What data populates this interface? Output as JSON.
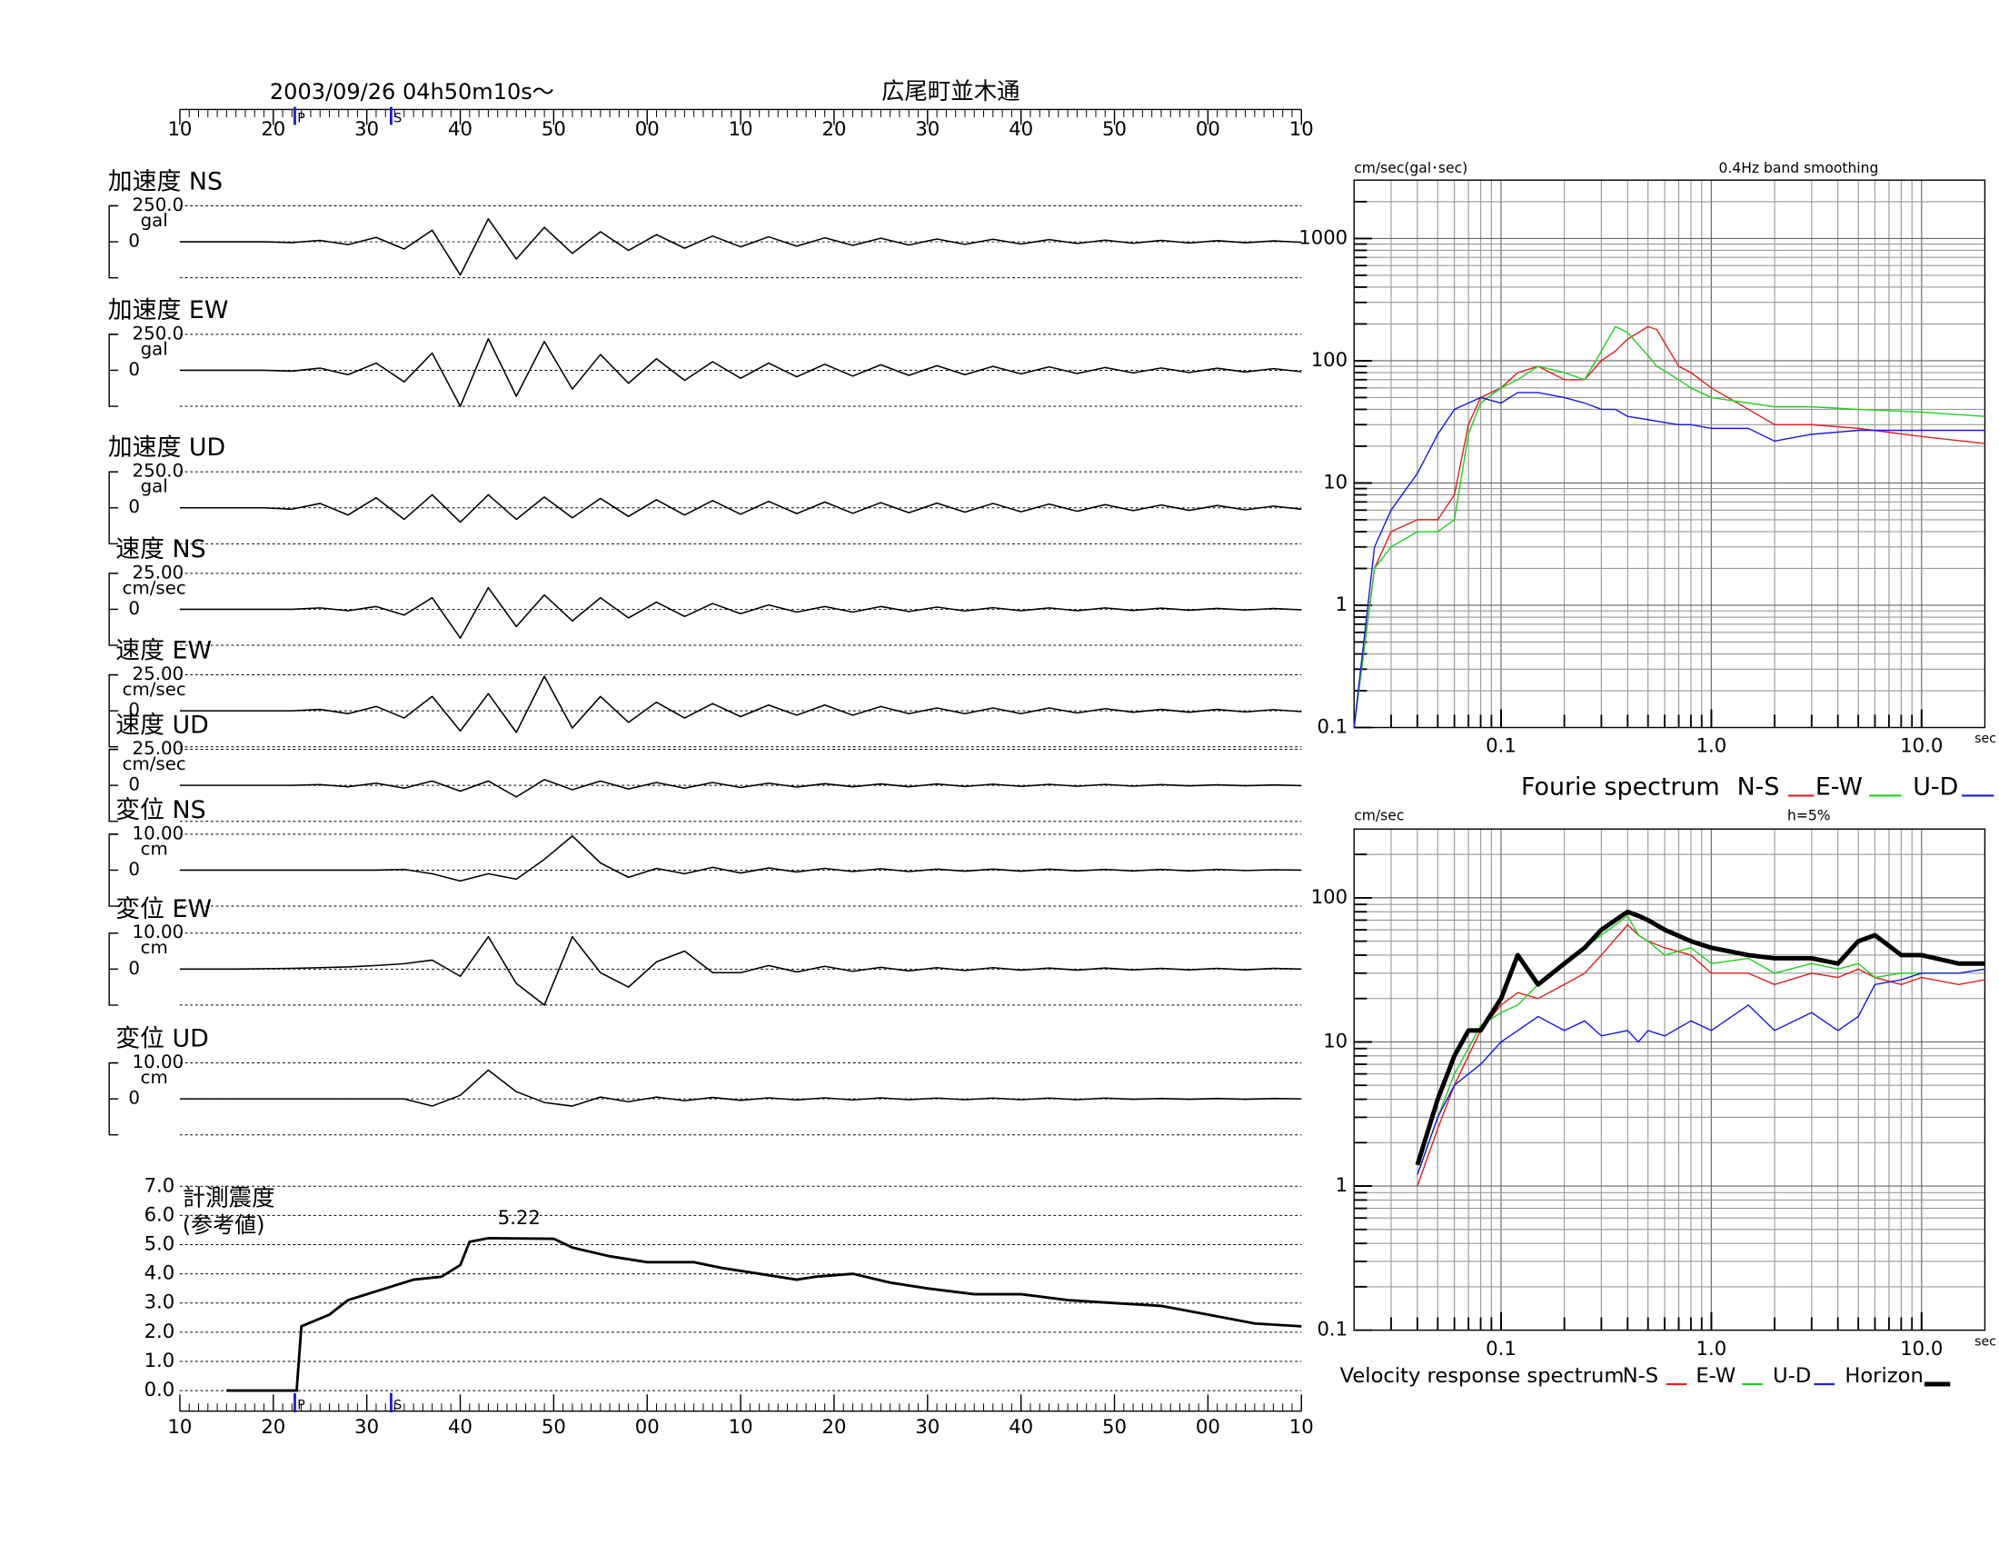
{
  "header": {
    "datetime": "2003/09/26  04h50m10s〜",
    "station": "広尾町並木通"
  },
  "chart_data": [
    {
      "type": "waveform",
      "xlim": [
        0,
        120
      ],
      "xticks": [
        {
          "value": 0,
          "label": "10"
        },
        {
          "value": 10,
          "label": "20"
        },
        {
          "value": 20,
          "label": "30"
        },
        {
          "value": 30,
          "label": "40"
        },
        {
          "value": 40,
          "label": "50"
        },
        {
          "value": 50,
          "label": "00"
        },
        {
          "value": 60,
          "label": "10"
        },
        {
          "value": 70,
          "label": "20"
        },
        {
          "value": 80,
          "label": "30"
        },
        {
          "value": 90,
          "label": "40"
        },
        {
          "value": 100,
          "label": "50"
        },
        {
          "value": 110,
          "label": "00"
        },
        {
          "value": 120,
          "label": "10"
        }
      ],
      "minor_tick_step": 1,
      "p_time": 12.3,
      "p_label": "P",
      "s_time": 22.6,
      "s_label": "S",
      "x": [
        0,
        3,
        6,
        9,
        12,
        15,
        18,
        21,
        24,
        27,
        30,
        33,
        36,
        39,
        42,
        45,
        48,
        51,
        54,
        57,
        60,
        63,
        66,
        69,
        72,
        75,
        78,
        81,
        84,
        87,
        90,
        93,
        96,
        99,
        102,
        105,
        108,
        111,
        114,
        117,
        120
      ],
      "traces": [
        {
          "title": "加速度 NS",
          "unit": "gal",
          "ylim": [
            -250,
            250
          ],
          "yticks": [
            {
              "value": 250,
              "label": "250.0"
            },
            0
          ],
          "values": [
            0,
            0,
            0,
            0,
            -5,
            10,
            -20,
            30,
            -50,
            80,
            -230,
            160,
            -120,
            100,
            -80,
            70,
            -60,
            50,
            -45,
            40,
            -35,
            35,
            -30,
            28,
            -25,
            25,
            -22,
            20,
            -18,
            18,
            -15,
            15,
            -12,
            12,
            -10,
            10,
            -8,
            8,
            -6,
            6,
            -4
          ]
        },
        {
          "title": "加速度 EW",
          "unit": "gal",
          "ylim": [
            -250,
            250
          ],
          "yticks": [
            {
              "value": 250,
              "label": "250.0"
            },
            0
          ],
          "values": [
            0,
            0,
            0,
            0,
            -5,
            15,
            -30,
            50,
            -80,
            120,
            -250,
            220,
            -180,
            200,
            -130,
            110,
            -90,
            80,
            -70,
            60,
            -55,
            50,
            -45,
            42,
            -40,
            38,
            -35,
            32,
            -30,
            28,
            -25,
            24,
            -22,
            20,
            -18,
            16,
            -15,
            14,
            -12,
            12,
            -10
          ]
        },
        {
          "title": "加速度 UD",
          "unit": "gal",
          "ylim": [
            -250,
            250
          ],
          "yticks": [
            {
              "value": 250,
              "label": "250.0"
            },
            0
          ],
          "values": [
            0,
            0,
            0,
            0,
            -10,
            30,
            -50,
            70,
            -80,
            90,
            -100,
            90,
            -80,
            75,
            -70,
            65,
            -60,
            55,
            -50,
            50,
            -45,
            45,
            -40,
            40,
            -38,
            36,
            -34,
            32,
            -30,
            30,
            -28,
            26,
            -24,
            22,
            -20,
            20,
            -18,
            16,
            -14,
            12,
            -10
          ]
        },
        {
          "title": "速度 NS",
          "unit": "cm/sec",
          "ylim": [
            -25,
            25
          ],
          "yticks": [
            {
              "value": 25,
              "label": "25.00"
            },
            0
          ],
          "values": [
            0,
            0,
            0,
            0,
            0,
            1,
            -1,
            2,
            -4,
            8,
            -20,
            15,
            -12,
            10,
            -8,
            8,
            -6,
            5,
            -5,
            4,
            -3,
            3,
            -2,
            2,
            -2,
            2,
            -1.5,
            1.5,
            -1.2,
            1.2,
            -1,
            1,
            -1,
            1,
            -0.8,
            0.8,
            -0.6,
            0.6,
            -0.5,
            0.5,
            -0.4
          ]
        },
        {
          "title": "速度 EW",
          "unit": "cm/sec",
          "ylim": [
            -25,
            25
          ],
          "yticks": [
            {
              "value": 25,
              "label": "25.00"
            },
            0
          ],
          "values": [
            0,
            0,
            0,
            0,
            0,
            1,
            -2,
            3,
            -5,
            10,
            -14,
            12,
            -15,
            24,
            -12,
            10,
            -8,
            6,
            -5,
            5,
            -4,
            4,
            -3,
            4,
            -3,
            3,
            -2,
            2,
            -2,
            2,
            -2,
            2,
            -1.5,
            1.5,
            -1,
            1,
            -1,
            1,
            -0.8,
            0.8,
            -0.5
          ]
        },
        {
          "title": "速度 UD",
          "unit": "cm/sec",
          "ylim": [
            -25,
            25
          ],
          "yticks": [
            {
              "value": 25,
              "label": "25.00"
            },
            0
          ],
          "values": [
            0,
            0,
            0,
            0,
            0,
            0.5,
            -1,
            1.5,
            -2,
            3,
            -4,
            3,
            -8,
            4,
            -3,
            3,
            -2.5,
            2,
            -2,
            2,
            -1.5,
            1.5,
            -1.2,
            1.2,
            -1,
            1,
            -1,
            1,
            -0.8,
            0.8,
            -0.7,
            0.7,
            -0.6,
            0.6,
            -0.5,
            0.5,
            -0.4,
            0.4,
            -0.3,
            0.3,
            -0.2
          ]
        },
        {
          "title": "変位 NS",
          "unit": "cm",
          "ylim": [
            -10,
            10
          ],
          "yticks": [
            {
              "value": 10,
              "label": "10.00"
            },
            0
          ],
          "values": [
            0,
            0,
            0,
            0,
            0,
            0,
            0,
            0,
            0.2,
            -1,
            -3,
            -1,
            -2.5,
            3,
            9.5,
            2,
            -2,
            0.5,
            -1,
            0.8,
            -0.8,
            0.6,
            -0.5,
            0.5,
            -0.4,
            0.4,
            -0.4,
            0.3,
            -0.3,
            0.3,
            -0.3,
            0.3,
            -0.2,
            0.2,
            -0.2,
            0.2,
            -0.2,
            0.2,
            -0.1,
            0.1,
            0
          ]
        },
        {
          "title": "変位 EW",
          "unit": "cm",
          "ylim": [
            -10,
            10
          ],
          "yticks": [
            {
              "value": 10,
              "label": "10.00"
            },
            0
          ],
          "values": [
            0,
            0,
            0,
            0.1,
            0.2,
            0.4,
            0.6,
            1,
            1.5,
            2.5,
            -2,
            9,
            -4,
            -10,
            9,
            -1,
            -5,
            2,
            5,
            -1,
            -1,
            1,
            -0.8,
            0.8,
            -0.6,
            0.5,
            -0.5,
            0.4,
            -0.4,
            0.4,
            -0.3,
            0.3,
            -0.3,
            0.3,
            -0.2,
            0.2,
            -0.2,
            0.2,
            -0.2,
            0.2,
            0
          ]
        },
        {
          "title": "変位 UD",
          "unit": "cm",
          "ylim": [
            -10,
            10
          ],
          "yticks": [
            {
              "value": 10,
              "label": "10.00"
            },
            0
          ],
          "values": [
            0,
            0,
            0,
            0,
            0,
            0,
            0,
            0,
            0,
            -2,
            1,
            8,
            2,
            -1,
            -2,
            0.5,
            -0.8,
            0.5,
            -0.5,
            0.4,
            -0.4,
            0.3,
            -0.3,
            0.3,
            -0.3,
            0.3,
            -0.2,
            0.2,
            -0.2,
            0.2,
            -0.2,
            0.2,
            -0.2,
            0.2,
            -0.1,
            0.1,
            -0.1,
            0.1,
            -0.1,
            0.1,
            0
          ]
        }
      ]
    },
    {
      "type": "line",
      "title": "計測震度",
      "subtitle": "(参考値)",
      "xlim": [
        0,
        120
      ],
      "xticks": [
        {
          "value": 0,
          "label": "10"
        },
        {
          "value": 10,
          "label": "20"
        },
        {
          "value": 20,
          "label": "30"
        },
        {
          "value": 30,
          "label": "40"
        },
        {
          "value": 40,
          "label": "50"
        },
        {
          "value": 50,
          "label": "00"
        },
        {
          "value": 60,
          "label": "10"
        },
        {
          "value": 70,
          "label": "20"
        },
        {
          "value": 80,
          "label": "30"
        },
        {
          "value": 90,
          "label": "40"
        },
        {
          "value": 100,
          "label": "50"
        },
        {
          "value": 110,
          "label": "00"
        },
        {
          "value": 120,
          "label": "10"
        }
      ],
      "minor_tick_step": 1,
      "p_time": 12.3,
      "p_label": "P",
      "s_time": 22.6,
      "s_label": "S",
      "ylim": [
        0,
        7
      ],
      "yticks": [
        {
          "value": 0,
          "label": "0.0"
        },
        {
          "value": 1,
          "label": "1.0"
        },
        {
          "value": 2,
          "label": "2.0"
        },
        {
          "value": 3,
          "label": "3.0"
        },
        {
          "value": 4,
          "label": "4.0"
        },
        {
          "value": 5,
          "label": "5.0"
        },
        {
          "value": 6,
          "label": "6.0"
        },
        {
          "value": 7,
          "label": "7.0"
        }
      ],
      "x": [
        5,
        12.5,
        13,
        16,
        18,
        22,
        25,
        28,
        30,
        31,
        33,
        40,
        42,
        46,
        50,
        55,
        58,
        62,
        66,
        68,
        72,
        76,
        80,
        85,
        90,
        95,
        100,
        105,
        110,
        115,
        120
      ],
      "values": [
        0,
        0,
        2.2,
        2.6,
        3.1,
        3.5,
        3.8,
        3.9,
        4.3,
        5.1,
        5.22,
        5.2,
        4.9,
        4.6,
        4.4,
        4.4,
        4.2,
        4.0,
        3.8,
        3.9,
        4.0,
        3.7,
        3.5,
        3.3,
        3.3,
        3.1,
        3.0,
        2.9,
        2.6,
        2.3,
        2.2
      ],
      "peak": 5.22,
      "color": "#000000"
    },
    {
      "type": "loglog",
      "title": "Fourie spectrum",
      "ylabel": "cm/sec(gal･sec)",
      "xlabel": "sec",
      "annotation": "0.4Hz band smoothing",
      "log_scale": true,
      "grid": true,
      "xlim": [
        0.02,
        20
      ],
      "xticks": [
        {
          "value": 0.1,
          "label": "0.1"
        },
        {
          "value": 1,
          "label": "1.0"
        },
        {
          "value": 10,
          "label": "10.0"
        }
      ],
      "ylim": [
        0.1,
        3000
      ],
      "yticks": [
        0.1,
        1,
        10,
        100,
        1000
      ],
      "x": [
        0.02,
        0.025,
        0.03,
        0.04,
        0.05,
        0.06,
        0.07,
        0.08,
        0.1,
        0.12,
        0.15,
        0.2,
        0.25,
        0.3,
        0.35,
        0.4,
        0.5,
        0.55,
        0.7,
        0.8,
        1,
        1.5,
        2,
        3,
        5,
        10,
        20
      ],
      "series": [
        {
          "name": "N-S",
          "color": "#e02020",
          "line_width": 1,
          "values": [
            0.1,
            2,
            4,
            5,
            5,
            8,
            30,
            50,
            60,
            80,
            90,
            70,
            70,
            100,
            120,
            150,
            190,
            180,
            90,
            80,
            60,
            40,
            30,
            30,
            28,
            24,
            21
          ]
        },
        {
          "name": "E-W",
          "color": "#20d020",
          "line_width": 1,
          "values": [
            0.1,
            2,
            3,
            4,
            4,
            5,
            25,
            45,
            60,
            70,
            90,
            80,
            70,
            120,
            190,
            170,
            110,
            90,
            70,
            60,
            50,
            45,
            42,
            42,
            40,
            38,
            35
          ]
        },
        {
          "name": "U-D",
          "color": "#1a1ae0",
          "line_width": 1,
          "values": [
            0.1,
            3,
            6,
            12,
            25,
            40,
            45,
            50,
            45,
            55,
            55,
            50,
            45,
            40,
            40,
            35,
            33,
            32,
            30,
            30,
            28,
            28,
            22,
            25,
            27,
            27,
            27
          ]
        }
      ]
    },
    {
      "type": "loglog",
      "title": "Velocity response spectrum",
      "ylabel": "cm/sec",
      "xlabel": "sec",
      "annotation": "h=5%",
      "log_scale": true,
      "grid": true,
      "xlim": [
        0.02,
        20
      ],
      "xticks": [
        {
          "value": 0.1,
          "label": "0.1"
        },
        {
          "value": 1,
          "label": "1.0"
        },
        {
          "value": 10,
          "label": "10.0"
        }
      ],
      "ylim": [
        0.1,
        300
      ],
      "yticks": [
        0.1,
        1,
        10,
        100
      ],
      "x": [
        0.04,
        0.05,
        0.06,
        0.07,
        0.08,
        0.1,
        0.12,
        0.15,
        0.2,
        0.25,
        0.3,
        0.4,
        0.45,
        0.5,
        0.6,
        0.8,
        1,
        1.5,
        2,
        3,
        4,
        5,
        6,
        8,
        10,
        15,
        20
      ],
      "series": [
        {
          "name": "N-S",
          "color": "#e02020",
          "line_width": 1,
          "values": [
            1,
            2.5,
            5,
            8,
            12,
            18,
            22,
            20,
            25,
            30,
            40,
            65,
            55,
            50,
            45,
            40,
            30,
            30,
            25,
            30,
            28,
            32,
            28,
            25,
            28,
            25,
            27
          ]
        },
        {
          "name": "E-W",
          "color": "#20d020",
          "line_width": 1,
          "values": [
            1.2,
            3,
            6,
            9,
            13,
            16,
            18,
            25,
            35,
            45,
            55,
            75,
            55,
            50,
            40,
            45,
            35,
            38,
            30,
            35,
            32,
            35,
            28,
            30,
            30,
            30,
            32
          ]
        },
        {
          "name": "U-D",
          "color": "#1a1ae0",
          "line_width": 1,
          "values": [
            1.2,
            3,
            5,
            6,
            7,
            10,
            12,
            15,
            12,
            14,
            11,
            12,
            10,
            12,
            11,
            14,
            12,
            18,
            12,
            16,
            12,
            15,
            25,
            27,
            30,
            30,
            32
          ]
        },
        {
          "name": "Horizon",
          "color": "#000000",
          "line_width": 3.5,
          "values": [
            1.4,
            4,
            8,
            12,
            12,
            20,
            40,
            25,
            35,
            45,
            60,
            80,
            75,
            70,
            60,
            50,
            45,
            40,
            38,
            38,
            35,
            50,
            55,
            40,
            40,
            35,
            35
          ]
        }
      ]
    }
  ]
}
